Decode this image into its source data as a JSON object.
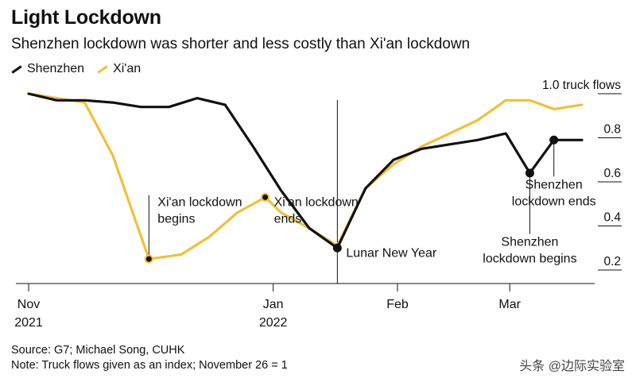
{
  "title": "Light Lockdown",
  "subtitle": "Shenzhen lockdown was shorter and less costly than Xi'an lockdown",
  "source": "Source: G7; Michael Song, CUHK",
  "note": "Note: Truck flows given as an index; November 26 = 1",
  "watermark": "头条 @边际实验室",
  "colors": {
    "shenzhen": "#111111",
    "xian": "#f2c036",
    "axis": "#111111",
    "grid": "#bbbbbb"
  },
  "chart_data": {
    "type": "line",
    "title": "Light Lockdown",
    "subtitle": "Shenzhen lockdown was shorter and less costly than Xi'an lockdown",
    "ylabel": "1.0 truck flows",
    "ylim": [
      0.2,
      1.0
    ],
    "yticks": [
      {
        "value": 1.0,
        "label": "1.0 truck flows"
      },
      {
        "value": 0.8,
        "label": "0.8"
      },
      {
        "value": 0.6,
        "label": "0.6"
      },
      {
        "value": 0.4,
        "label": "0.4"
      },
      {
        "value": 0.2,
        "label": "0.2"
      }
    ],
    "xticks": [
      {
        "date": "2021-11-01",
        "label": "Nov",
        "sublabel": "2021"
      },
      {
        "date": "2022-01-01",
        "label": "Jan",
        "sublabel": "2022"
      },
      {
        "date": "2022-02-01",
        "label": "Feb",
        "sublabel": ""
      },
      {
        "date": "2022-03-01",
        "label": "Mar",
        "sublabel": ""
      }
    ],
    "xlim": [
      "2021-11-01",
      "2022-03-19"
    ],
    "grid": true,
    "legend_position": "top-left",
    "series": [
      {
        "name": "Shenzhen",
        "color": "#111111",
        "points": [
          {
            "x": "2021-11-01",
            "y": 1.0
          },
          {
            "x": "2021-11-08",
            "y": 0.97
          },
          {
            "x": "2021-11-15",
            "y": 0.97
          },
          {
            "x": "2021-11-22",
            "y": 0.96
          },
          {
            "x": "2021-11-29",
            "y": 0.94
          },
          {
            "x": "2021-12-06",
            "y": 0.94
          },
          {
            "x": "2021-12-13",
            "y": 0.98
          },
          {
            "x": "2021-12-20",
            "y": 0.95
          },
          {
            "x": "2021-12-27",
            "y": 0.76
          },
          {
            "x": "2022-01-03",
            "y": 0.56
          },
          {
            "x": "2022-01-10",
            "y": 0.39
          },
          {
            "x": "2022-01-17",
            "y": 0.3
          },
          {
            "x": "2022-01-24",
            "y": 0.57
          },
          {
            "x": "2022-01-31",
            "y": 0.7
          },
          {
            "x": "2022-02-07",
            "y": 0.75
          },
          {
            "x": "2022-02-14",
            "y": 0.77
          },
          {
            "x": "2022-02-21",
            "y": 0.79
          },
          {
            "x": "2022-02-28",
            "y": 0.82
          },
          {
            "x": "2022-03-06",
            "y": 0.64
          },
          {
            "x": "2022-03-12",
            "y": 0.79
          },
          {
            "x": "2022-03-19",
            "y": 0.79
          }
        ]
      },
      {
        "name": "Xi'an",
        "color": "#f2c036",
        "points": [
          {
            "x": "2021-11-01",
            "y": 1.0
          },
          {
            "x": "2021-11-08",
            "y": 0.98
          },
          {
            "x": "2021-11-15",
            "y": 0.96
          },
          {
            "x": "2021-11-22",
            "y": 0.72
          },
          {
            "x": "2021-12-01",
            "y": 0.25
          },
          {
            "x": "2021-12-09",
            "y": 0.27
          },
          {
            "x": "2021-12-16",
            "y": 0.35
          },
          {
            "x": "2021-12-23",
            "y": 0.46
          },
          {
            "x": "2021-12-30",
            "y": 0.53
          },
          {
            "x": "2022-01-03",
            "y": 0.46
          },
          {
            "x": "2022-01-10",
            "y": 0.39
          },
          {
            "x": "2022-01-17",
            "y": 0.31
          },
          {
            "x": "2022-01-24",
            "y": 0.57
          },
          {
            "x": "2022-01-31",
            "y": 0.68
          },
          {
            "x": "2022-02-07",
            "y": 0.76
          },
          {
            "x": "2022-02-14",
            "y": 0.82
          },
          {
            "x": "2022-02-21",
            "y": 0.88
          },
          {
            "x": "2022-02-28",
            "y": 0.97
          },
          {
            "x": "2022-03-06",
            "y": 0.97
          },
          {
            "x": "2022-03-12",
            "y": 0.93
          },
          {
            "x": "2022-03-19",
            "y": 0.95
          }
        ]
      }
    ],
    "annotations": [
      {
        "text": "Xi'an lockdown\nbegins",
        "x": "2021-12-01",
        "y": 0.25,
        "series": "Xi'an",
        "label_y": 0.49,
        "label_side": "right"
      },
      {
        "text": "Xi'an lockdown\nends",
        "x": "2021-12-30",
        "y": 0.53,
        "series": "Xi'an",
        "label_y": 0.49,
        "label_side": "right"
      },
      {
        "text": "Lunar New Year",
        "x": "2022-01-17",
        "y": 0.3,
        "series": "Shenzhen",
        "label_y": 0.26,
        "label_side": "right"
      },
      {
        "text": "Shenzhen\nlockdown begins",
        "x": "2022-03-06",
        "y": 0.64,
        "series": "Shenzhen",
        "label_y": 0.31,
        "label_side": "center"
      },
      {
        "text": "Shenzhen\nlockdown ends",
        "x": "2022-03-12",
        "y": 0.79,
        "series": "Shenzhen",
        "label_y": 0.57,
        "label_side": "center"
      }
    ],
    "vertical_marker": {
      "x": "2022-01-17",
      "label": "Lunar New Year"
    }
  }
}
